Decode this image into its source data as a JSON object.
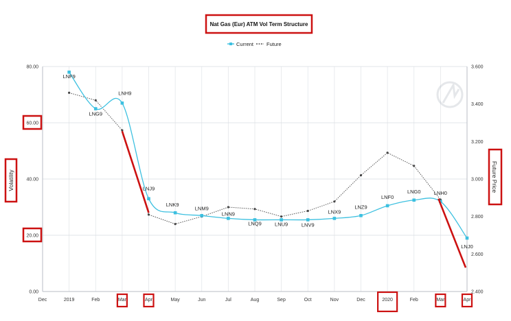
{
  "chart_data": {
    "type": "line",
    "title": "Nat Gas (Eur) ATM Vol Term Structure",
    "ylabel": "Volatility",
    "y2label": "Future Price",
    "ylim": [
      0,
      80
    ],
    "y2lim": [
      2.4,
      3.6
    ],
    "yticks": [
      "0.00",
      "20.00",
      "40.00",
      "60.00",
      "80.00"
    ],
    "y2ticks": [
      "2.400",
      "2.600",
      "2.800",
      "3.000",
      "3.200",
      "3.400",
      "3.600"
    ],
    "x_ticks": [
      "Dec",
      "2019",
      "Feb",
      "Mar",
      "Apr",
      "May",
      "Jun",
      "Jul",
      "Aug",
      "Sep",
      "Oct",
      "Nov",
      "Dec",
      "2020",
      "Feb",
      "Mar",
      "Apr"
    ],
    "legend_position": "top-center",
    "grid": true,
    "series": [
      {
        "name": "Current",
        "axis": "left",
        "color": "#3cc0e0",
        "x": [
          "2019",
          "Feb",
          "Mar",
          "Apr",
          "May",
          "Jun",
          "Jul",
          "Aug",
          "Sep",
          "Oct",
          "Nov",
          "Dec",
          "2020",
          "Feb",
          "Mar",
          "Apr"
        ],
        "values": [
          78,
          65,
          67,
          33,
          28,
          27,
          26,
          25.5,
          25.5,
          25.5,
          26,
          27,
          30.5,
          32.5,
          32,
          19
        ],
        "labels": [
          "LNF9",
          "LNG9",
          "LNH9",
          "LNJ9",
          "LNK9",
          "LNM9",
          "LNN9",
          "LNQ9",
          "LNU9",
          "LNV9",
          "LNX9",
          "LNZ9",
          "LNF0",
          "LNG0",
          "LNH0",
          "LNJ0"
        ]
      },
      {
        "name": "Future",
        "axis": "right",
        "color": "#555555",
        "x": [
          "2019",
          "Feb",
          "Mar",
          "Apr",
          "May",
          "Jun",
          "Jul",
          "Aug",
          "Sep",
          "Oct",
          "Nov",
          "Dec",
          "2020",
          "Feb",
          "Mar"
        ],
        "values": [
          3.46,
          3.42,
          3.26,
          2.81,
          2.76,
          2.8,
          2.85,
          2.84,
          2.8,
          2.83,
          2.88,
          3.02,
          3.14,
          3.07,
          2.89
        ]
      }
    ],
    "annotation_color": "#cc1111"
  }
}
